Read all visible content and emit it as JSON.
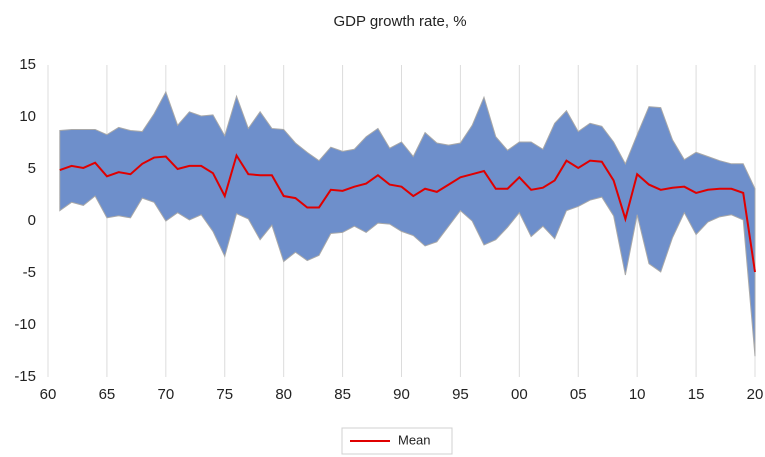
{
  "chart_data": {
    "type": "line",
    "title": "GDP growth rate, %",
    "x": [
      1961,
      1962,
      1963,
      1964,
      1965,
      1966,
      1967,
      1968,
      1969,
      1970,
      1971,
      1972,
      1973,
      1974,
      1975,
      1976,
      1977,
      1978,
      1979,
      1980,
      1981,
      1982,
      1983,
      1984,
      1985,
      1986,
      1987,
      1988,
      1989,
      1990,
      1991,
      1992,
      1993,
      1994,
      1995,
      1996,
      1997,
      1998,
      1999,
      2000,
      2001,
      2002,
      2003,
      2004,
      2005,
      2006,
      2007,
      2008,
      2009,
      2010,
      2011,
      2012,
      2013,
      2014,
      2015,
      2016,
      2017,
      2018,
      2019,
      2020
    ],
    "series": [
      {
        "name": "Mean",
        "color": "#e00000",
        "values": [
          4.9,
          5.3,
          5.1,
          5.6,
          4.3,
          4.7,
          4.5,
          5.5,
          6.1,
          6.2,
          5.0,
          5.3,
          5.3,
          4.6,
          2.4,
          6.3,
          4.5,
          4.4,
          4.4,
          2.4,
          2.2,
          1.3,
          1.3,
          3.0,
          2.9,
          3.3,
          3.6,
          4.4,
          3.5,
          3.3,
          2.4,
          3.1,
          2.8,
          3.5,
          4.2,
          4.5,
          4.8,
          3.1,
          3.1,
          4.2,
          3.0,
          3.2,
          3.9,
          5.8,
          5.1,
          5.8,
          5.7,
          3.9,
          0.2,
          4.5,
          3.5,
          3.0,
          3.2,
          3.3,
          2.7,
          3.0,
          3.1,
          3.1,
          2.7,
          -4.9
        ]
      }
    ],
    "band": {
      "color": "#6e8fcb",
      "upper": [
        8.7,
        8.8,
        8.8,
        8.8,
        8.3,
        9.0,
        8.7,
        8.6,
        10.3,
        12.4,
        9.2,
        10.5,
        10.1,
        10.2,
        8.2,
        12.0,
        8.9,
        10.5,
        8.9,
        8.8,
        7.5,
        6.6,
        5.8,
        7.1,
        6.7,
        6.9,
        8.1,
        8.9,
        7.0,
        7.6,
        6.2,
        8.5,
        7.5,
        7.3,
        7.5,
        9.2,
        11.9,
        8.1,
        6.8,
        7.6,
        7.6,
        6.9,
        9.4,
        10.6,
        8.6,
        9.4,
        9.1,
        7.6,
        5.5,
        8.3,
        11.0,
        10.9,
        7.8,
        5.9,
        6.6,
        6.2,
        5.8,
        5.5,
        5.5,
        3.1
      ],
      "lower": [
        1.0,
        1.8,
        1.5,
        2.4,
        0.3,
        0.5,
        0.3,
        2.2,
        1.8,
        0.0,
        0.8,
        0.1,
        0.6,
        -1.0,
        -3.4,
        0.7,
        0.2,
        -1.8,
        -0.4,
        -3.9,
        -3.0,
        -3.8,
        -3.3,
        -1.2,
        -1.1,
        -0.5,
        -1.1,
        -0.2,
        -0.3,
        -1.0,
        -1.4,
        -2.4,
        -2.0,
        -0.5,
        1.0,
        0.0,
        -2.3,
        -1.8,
        -0.6,
        0.8,
        -1.5,
        -0.5,
        -1.7,
        1.0,
        1.4,
        2.0,
        2.3,
        0.5,
        -5.2,
        0.6,
        -4.1,
        -4.9,
        -1.6,
        0.8,
        -1.3,
        -0.1,
        0.4,
        0.6,
        0.1,
        -13.0
      ]
    },
    "xlim": [
      1960,
      2020
    ],
    "xticks": [
      {
        "value": 1960,
        "label": "60"
      },
      {
        "value": 1965,
        "label": "65"
      },
      {
        "value": 1970,
        "label": "70"
      },
      {
        "value": 1975,
        "label": "75"
      },
      {
        "value": 1980,
        "label": "80"
      },
      {
        "value": 1985,
        "label": "85"
      },
      {
        "value": 1990,
        "label": "90"
      },
      {
        "value": 1995,
        "label": "95"
      },
      {
        "value": 2000,
        "label": "00"
      },
      {
        "value": 2005,
        "label": "05"
      },
      {
        "value": 2010,
        "label": "10"
      },
      {
        "value": 2015,
        "label": "15"
      },
      {
        "value": 2020,
        "label": "20"
      }
    ],
    "ylim": [
      -15,
      15
    ],
    "yticks": [
      -15,
      -10,
      -5,
      0,
      5,
      10,
      15
    ],
    "xgrid": true,
    "legend": "bottom"
  }
}
